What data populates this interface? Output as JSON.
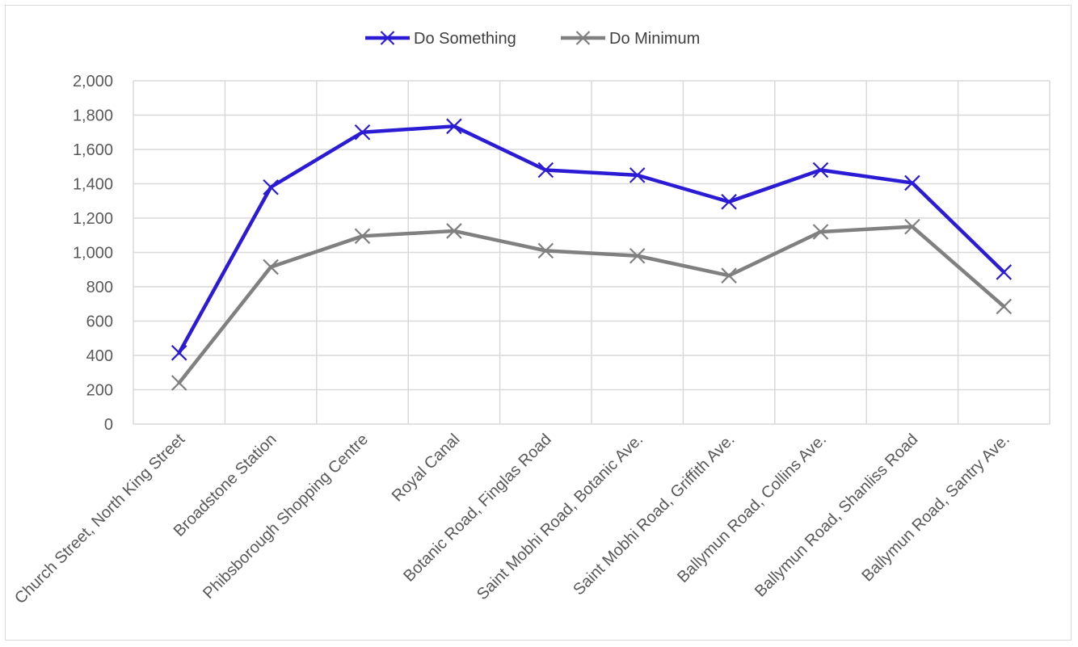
{
  "chart_data": {
    "type": "line",
    "categories": [
      "Church Street, North King Street",
      "Broadstone Station",
      "Phibsborough Shopping Centre",
      "Royal Canal",
      "Botanic Road, Finglas Road",
      "Saint Mobhi Road, Botanic Ave.",
      "Saint Mobhi Road, Griffith Ave.",
      "Ballymun Road, Collins Ave.",
      "Ballymun Road, Shanliss Road",
      "Ballymun Road, Santry Ave."
    ],
    "series": [
      {
        "name": "Do Something",
        "color": "#2B1BD4",
        "values": [
          415,
          1380,
          1700,
          1735,
          1480,
          1450,
          1295,
          1480,
          1405,
          885
        ]
      },
      {
        "name": "Do Minimum",
        "color": "#808080",
        "values": [
          240,
          915,
          1095,
          1125,
          1010,
          980,
          865,
          1120,
          1150,
          685
        ]
      }
    ],
    "ylim": [
      0,
      2000
    ],
    "yticks": [
      "0",
      "200",
      "400",
      "600",
      "800",
      "1,000",
      "1,200",
      "1,400",
      "1,600",
      "1,800",
      "2,000"
    ],
    "grid": true,
    "legend_position": "top-center",
    "marker": "x"
  }
}
